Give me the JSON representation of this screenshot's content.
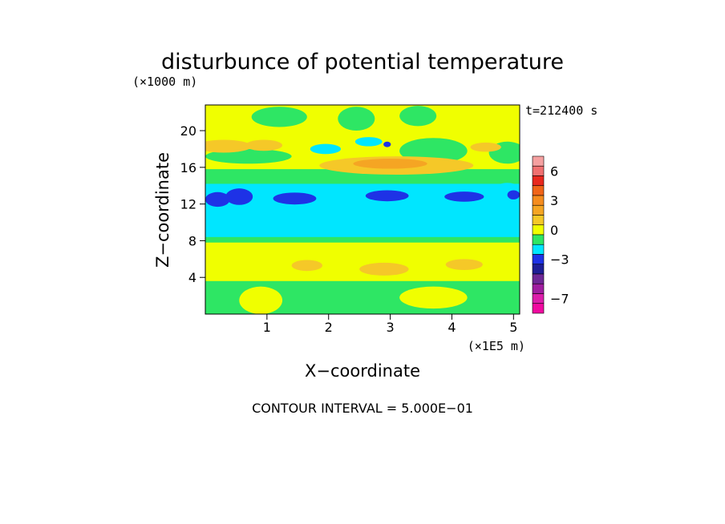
{
  "chart_data": {
    "type": "heatmap",
    "title": "disturbunce of potential temperature",
    "y_unit": "(×1000 m)",
    "x_unit": "(×1E5 m)",
    "xlabel": "X−coordinate",
    "ylabel": "Z−coordinate",
    "time_label": "t=212400 s",
    "footer": "CONTOUR INTERVAL = 5.000E−01",
    "xlim": [
      0,
      5.1
    ],
    "ylim": [
      0,
      22.8
    ],
    "x_ticks": [
      {
        "value": 1,
        "label": "1"
      },
      {
        "value": 2,
        "label": "2"
      },
      {
        "value": 3,
        "label": "3"
      },
      {
        "value": 4,
        "label": "4"
      },
      {
        "value": 5,
        "label": "5"
      }
    ],
    "y_ticks": [
      {
        "value": 4,
        "label": "4"
      },
      {
        "value": 8,
        "label": "8"
      },
      {
        "value": 12,
        "label": "12"
      },
      {
        "value": 16,
        "label": "16"
      },
      {
        "value": 20,
        "label": "20"
      }
    ],
    "colorbar": {
      "levels": [
        {
          "min": 6.5,
          "max": 7.5,
          "color": "#f5a0a0"
        },
        {
          "min": 5.5,
          "max": 6.5,
          "color": "#f07070"
        },
        {
          "min": 4.5,
          "max": 5.5,
          "color": "#e8281e"
        },
        {
          "min": 3.5,
          "max": 4.5,
          "color": "#f06418"
        },
        {
          "min": 2.5,
          "max": 3.5,
          "color": "#f58c1e"
        },
        {
          "min": 1.5,
          "max": 2.5,
          "color": "#f5a523"
        },
        {
          "min": 0.5,
          "max": 1.5,
          "color": "#f5c828"
        },
        {
          "min": -0.5,
          "max": 0.5,
          "color": "#f0ff00"
        },
        {
          "min": -1.5,
          "max": -0.5,
          "color": "#2ee664"
        },
        {
          "min": -2.5,
          "max": -1.5,
          "color": "#00e6ff"
        },
        {
          "min": -3.5,
          "max": -2.5,
          "color": "#1e32e6"
        },
        {
          "min": -4.5,
          "max": -3.5,
          "color": "#1e1e96"
        },
        {
          "min": -5.5,
          "max": -4.5,
          "color": "#6e2896"
        },
        {
          "min": -6.5,
          "max": -5.5,
          "color": "#a01ea0"
        },
        {
          "min": -7.5,
          "max": -6.5,
          "color": "#dc1eaa"
        },
        {
          "min": -8.5,
          "max": -7.5,
          "color": "#f00aa0"
        }
      ],
      "tick_labels": [
        {
          "value": 6,
          "label": "6"
        },
        {
          "value": 3,
          "label": "3"
        },
        {
          "value": 0,
          "label": "0"
        },
        {
          "value": -3,
          "label": "−3"
        },
        {
          "value": -7,
          "label": "−7"
        }
      ]
    },
    "regions": [
      {
        "shape": "rect",
        "x0": 0,
        "x1": 5.1,
        "z0": 0,
        "z1": 22.8,
        "value": 0,
        "name": "field-yellow-base"
      },
      {
        "shape": "rect",
        "x0": 0,
        "x1": 5.1,
        "z0": 0,
        "z1": 3.6,
        "value": -1,
        "name": "low-green-layer"
      },
      {
        "shape": "rect",
        "x0": 0,
        "x1": 5.1,
        "z0": 7.8,
        "z1": 10.0,
        "value": -1,
        "name": "green-band-lower"
      },
      {
        "shape": "rect",
        "x0": 0,
        "x1": 5.1,
        "z0": 13.8,
        "z1": 15.8,
        "value": -1,
        "name": "green-band-upper"
      },
      {
        "shape": "rect",
        "x0": 0,
        "x1": 5.1,
        "z0": 8.4,
        "z1": 14.2,
        "value": -2,
        "name": "cyan-band"
      },
      {
        "shape": "ellipse",
        "cx": 1.2,
        "cz": 21.5,
        "rx": 0.45,
        "rz": 1.1,
        "value": -1,
        "name": "green-cap-1"
      },
      {
        "shape": "ellipse",
        "cx": 2.45,
        "cz": 21.3,
        "rx": 0.3,
        "rz": 1.3,
        "value": -1,
        "name": "green-cap-2"
      },
      {
        "shape": "ellipse",
        "cx": 3.45,
        "cz": 21.6,
        "rx": 0.3,
        "rz": 1.1,
        "value": -1,
        "name": "green-cap-3"
      },
      {
        "shape": "ellipse",
        "cx": 3.7,
        "cz": 17.8,
        "rx": 0.55,
        "rz": 1.4,
        "value": -1,
        "name": "green-patch-upper-right"
      },
      {
        "shape": "ellipse",
        "cx": 4.9,
        "cz": 17.6,
        "rx": 0.3,
        "rz": 1.2,
        "value": -1,
        "name": "green-patch-far-right"
      },
      {
        "shape": "ellipse",
        "cx": 0.7,
        "cz": 17.2,
        "rx": 0.7,
        "rz": 0.8,
        "value": -1,
        "name": "green-patch-upper-left"
      },
      {
        "shape": "ellipse",
        "cx": 0.9,
        "cz": 1.5,
        "rx": 0.35,
        "rz": 1.5,
        "value": 0,
        "name": "yellow-low-left"
      },
      {
        "shape": "ellipse",
        "cx": 3.7,
        "cz": 1.8,
        "rx": 0.55,
        "rz": 1.2,
        "value": 0,
        "name": "yellow-low-right"
      },
      {
        "shape": "ellipse",
        "cx": 2.1,
        "cz": 5.6,
        "rx": 1.2,
        "rz": 1.8,
        "value": 0,
        "name": "yellow-mid-lower"
      },
      {
        "shape": "ellipse",
        "cx": 2.9,
        "cz": 4.9,
        "rx": 0.4,
        "rz": 0.7,
        "value": 1,
        "name": "orange-mid-lower-1"
      },
      {
        "shape": "ellipse",
        "cx": 1.65,
        "cz": 5.3,
        "rx": 0.25,
        "rz": 0.6,
        "value": 1,
        "name": "orange-mid-lower-2"
      },
      {
        "shape": "ellipse",
        "cx": 4.2,
        "cz": 5.4,
        "rx": 0.3,
        "rz": 0.6,
        "value": 1,
        "name": "orange-mid-lower-3"
      },
      {
        "shape": "ellipse",
        "cx": 3.1,
        "cz": 16.2,
        "rx": 1.25,
        "rz": 1.0,
        "value": 1,
        "name": "orange-upper-band"
      },
      {
        "shape": "ellipse",
        "cx": 3.0,
        "cz": 16.4,
        "rx": 0.6,
        "rz": 0.55,
        "value": 2,
        "name": "orange-upper-core"
      },
      {
        "shape": "ellipse",
        "cx": 0.3,
        "cz": 18.3,
        "rx": 0.45,
        "rz": 0.7,
        "value": 1,
        "name": "orange-upper-left-1"
      },
      {
        "shape": "ellipse",
        "cx": 0.95,
        "cz": 18.4,
        "rx": 0.3,
        "rz": 0.6,
        "value": 1,
        "name": "orange-upper-left-2"
      },
      {
        "shape": "ellipse",
        "cx": 4.55,
        "cz": 18.2,
        "rx": 0.25,
        "rz": 0.5,
        "value": 1,
        "name": "orange-upper-right"
      },
      {
        "shape": "ellipse",
        "cx": 1.95,
        "cz": 18.0,
        "rx": 0.25,
        "rz": 0.55,
        "value": -2,
        "name": "cyan-patch-upper-1"
      },
      {
        "shape": "ellipse",
        "cx": 2.65,
        "cz": 18.8,
        "rx": 0.22,
        "rz": 0.5,
        "value": -2,
        "name": "cyan-patch-upper-2"
      },
      {
        "shape": "ellipse",
        "cx": 4.9,
        "cz": 13.7,
        "rx": 0.2,
        "rz": 0.6,
        "value": -2,
        "name": "cyan-patch-right-edge"
      },
      {
        "shape": "ellipse",
        "cx": 0.2,
        "cz": 12.5,
        "rx": 0.2,
        "rz": 0.8,
        "value": -3,
        "name": "blue-blob-1"
      },
      {
        "shape": "ellipse",
        "cx": 0.55,
        "cz": 12.8,
        "rx": 0.22,
        "rz": 0.9,
        "value": -3,
        "name": "blue-blob-2"
      },
      {
        "shape": "ellipse",
        "cx": 1.45,
        "cz": 12.6,
        "rx": 0.35,
        "rz": 0.65,
        "value": -3,
        "name": "blue-blob-3"
      },
      {
        "shape": "ellipse",
        "cx": 2.95,
        "cz": 12.9,
        "rx": 0.35,
        "rz": 0.6,
        "value": -3,
        "name": "blue-blob-4"
      },
      {
        "shape": "ellipse",
        "cx": 4.2,
        "cz": 12.8,
        "rx": 0.32,
        "rz": 0.55,
        "value": -3,
        "name": "blue-blob-5"
      },
      {
        "shape": "ellipse",
        "cx": 5.0,
        "cz": 13.0,
        "rx": 0.1,
        "rz": 0.5,
        "value": -3,
        "name": "blue-blob-6"
      },
      {
        "shape": "ellipse",
        "cx": 2.95,
        "cz": 18.5,
        "rx": 0.06,
        "rz": 0.3,
        "value": -3,
        "name": "blue-dot-upper"
      }
    ]
  }
}
